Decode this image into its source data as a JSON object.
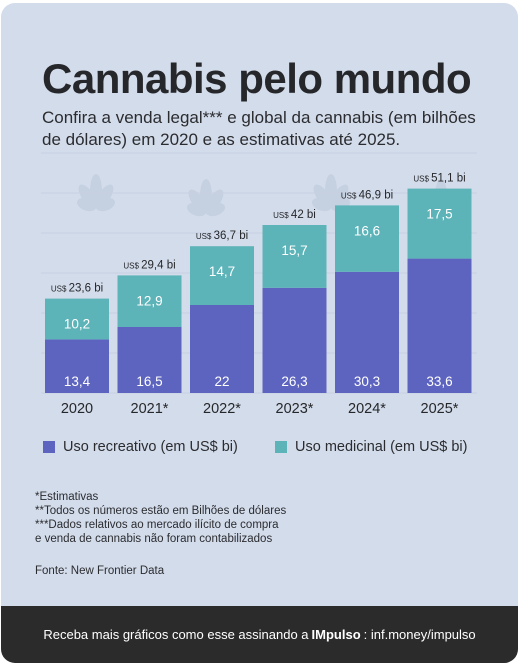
{
  "title": "Cannabis pelo mundo",
  "subtitle": "Confira a venda legal*** e global da cannabis (em bilhões de dólares) em 2020 e as estimativas até 2025.",
  "colors": {
    "background": "#d3dcea",
    "recreational": "#5d64bf",
    "medicinal": "#5cb3b8",
    "footer": "#2b2b2b"
  },
  "icons": [
    "cannabis-leaf-icon"
  ],
  "chart_data": {
    "type": "bar",
    "stacked": true,
    "categories": [
      "2020",
      "2021*",
      "2022*",
      "2023*",
      "2024*",
      "2025*"
    ],
    "series": [
      {
        "name": "Uso recreativo (em US$ bi)",
        "values": [
          13.4,
          16.5,
          22,
          26.3,
          30.3,
          33.6
        ],
        "labels": [
          "13,4",
          "16,5",
          "22",
          "26,3",
          "30,3",
          "33,6"
        ]
      },
      {
        "name": "Uso medicinal (em US$ bi)",
        "values": [
          10.2,
          12.9,
          14.7,
          15.7,
          16.6,
          17.5
        ],
        "labels": [
          "10,2",
          "12,9",
          "14,7",
          "15,7",
          "16,6",
          "17,5"
        ]
      }
    ],
    "totals": [
      23.6,
      29.4,
      36.7,
      42,
      46.9,
      51.1
    ],
    "total_prefix": "US$",
    "total_labels": [
      "23,6 bi",
      "29,4 bi",
      "36,7 bi",
      "42 bi",
      "46,9 bi",
      "51,1 bi"
    ],
    "ylim": [
      0,
      60
    ],
    "legend_position": "bottom"
  },
  "notes": [
    "*Estimativas",
    "**Todos os números estão em Bilhões de dólares",
    "***Dados relativos ao mercado ilícito de compra",
    "e venda de cannabis não foram contabilizados"
  ],
  "source": "Fonte: New Frontier Data",
  "footer": {
    "text_before": "Receba mais gráficos como esse assinando a",
    "brand": "IMpulso",
    "text_after": ": inf.money/impulso"
  }
}
